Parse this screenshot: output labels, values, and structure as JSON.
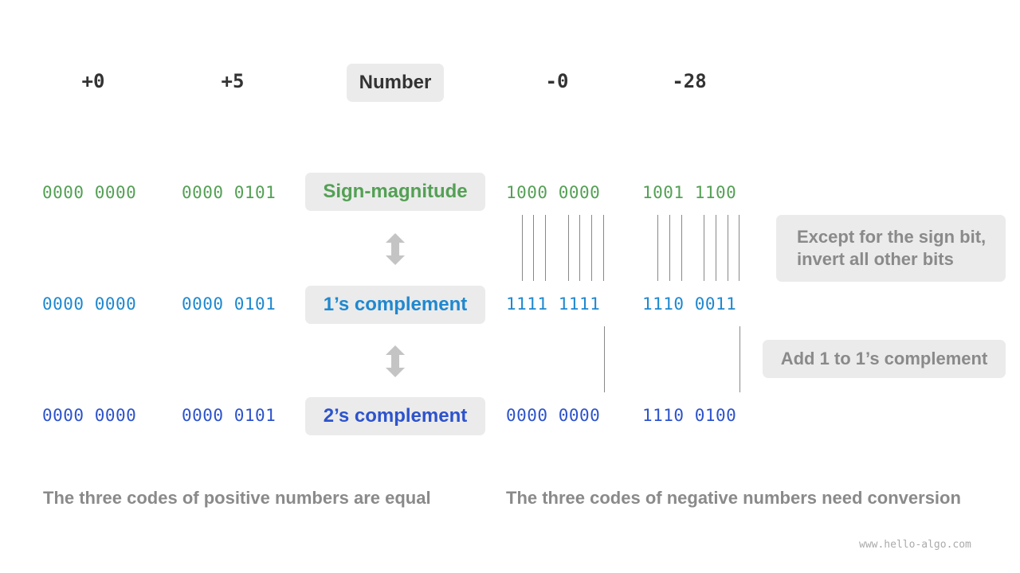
{
  "headers": {
    "pos0": "+0",
    "pos5": "+5",
    "number": "Number",
    "neg0": "-0",
    "neg28": "-28"
  },
  "rows": {
    "sign_magnitude": {
      "label": "Sign-magnitude",
      "pos0": "0000 0000",
      "pos5": "0000 0101",
      "neg0": "1000 0000",
      "neg28": "1001 1100"
    },
    "ones_complement": {
      "label": "1’s complement",
      "pos0": "0000 0000",
      "pos5": "0000 0101",
      "neg0": "1111 1111",
      "neg28": "1110 0011"
    },
    "twos_complement": {
      "label": "2’s complement",
      "pos0": "0000 0000",
      "pos5": "0000 0101",
      "neg0": "0000 0000",
      "neg28": "1110 0100"
    }
  },
  "notes": {
    "invert": "Except for the sign bit, invert all other bits",
    "add_one": "Add 1 to 1’s complement"
  },
  "captions": {
    "positive": "The three codes of positive numbers are equal",
    "negative": "The three codes of negative numbers need conversion"
  },
  "watermark": "www.hello-algo.com",
  "colors": {
    "sign_magnitude": "#54a055",
    "ones_complement": "#1f88cf",
    "twos_complement": "#2d53cc",
    "box": "#ebebeb"
  }
}
